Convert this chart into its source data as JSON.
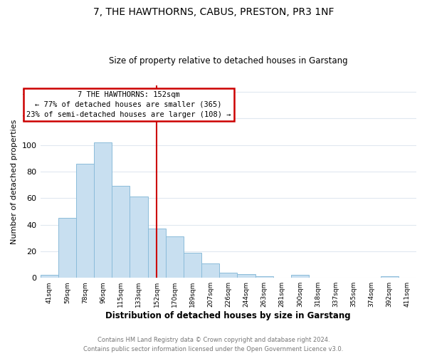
{
  "title": "7, THE HAWTHORNS, CABUS, PRESTON, PR3 1NF",
  "subtitle": "Size of property relative to detached houses in Garstang",
  "xlabel": "Distribution of detached houses by size in Garstang",
  "ylabel": "Number of detached properties",
  "bin_labels": [
    "41sqm",
    "59sqm",
    "78sqm",
    "96sqm",
    "115sqm",
    "133sqm",
    "152sqm",
    "170sqm",
    "189sqm",
    "207sqm",
    "226sqm",
    "244sqm",
    "263sqm",
    "281sqm",
    "300sqm",
    "318sqm",
    "337sqm",
    "355sqm",
    "374sqm",
    "392sqm",
    "411sqm"
  ],
  "bar_heights": [
    2,
    45,
    86,
    102,
    69,
    61,
    37,
    31,
    19,
    11,
    4,
    3,
    1,
    0,
    2,
    0,
    0,
    0,
    0,
    1,
    0
  ],
  "bar_color": "#c8dff0",
  "bar_edge_color": "#8bbcda",
  "vline_x_index": 6,
  "vline_color": "#cc0000",
  "ylim": [
    0,
    145
  ],
  "annotation_title": "7 THE HAWTHORNS: 152sqm",
  "annotation_line1": "← 77% of detached houses are smaller (365)",
  "annotation_line2": "23% of semi-detached houses are larger (108) →",
  "annotation_box_color": "#ffffff",
  "annotation_box_edge_color": "#cc0000",
  "footer_line1": "Contains HM Land Registry data © Crown copyright and database right 2024.",
  "footer_line2": "Contains public sector information licensed under the Open Government Licence v3.0.",
  "background_color": "#ffffff",
  "grid_color": "#e0e8f0"
}
